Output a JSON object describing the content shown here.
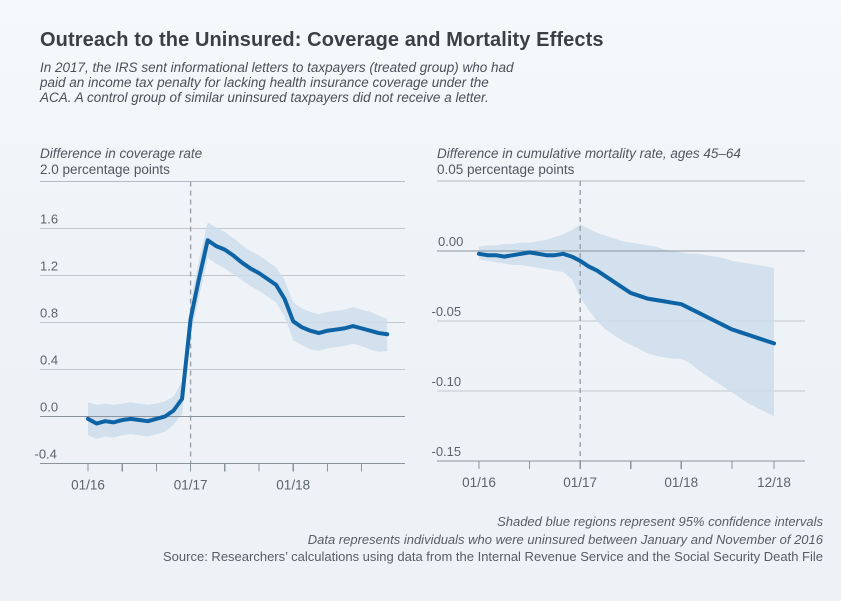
{
  "page": {
    "title": "Outreach to the Uninsured: Coverage and Mortality Effects",
    "subtitle_lines": [
      "In 2017, the IRS sent informational letters to taxpayers (treated group) who had",
      "paid an income tax penalty for lacking health insurance coverage under the",
      "ACA. A control group of similar uninsured taxpayers did not receive a letter."
    ],
    "footer": {
      "note1": "Shaded blue regions represent 95% confidence intervals",
      "note2": "Data represents individuals who were uninsured between January and November of 2016",
      "source": "Source: Researchers’ calculations using data from the Internal Revenue Service and the Social Security Death File"
    }
  },
  "colors": {
    "background": "#eff3f7",
    "line_blue": "#0e63a5",
    "band_blue": "#cdddeb",
    "grid_gray": "#c2c8ce",
    "dark_gray": "#8b939b",
    "dashed_gray": "#9aa1a9",
    "title_text": "#3a4046",
    "body_text": "#4a5158"
  },
  "chart_data": [
    {
      "type": "line",
      "title": "Difference in coverage rate",
      "units_label": "2.0 percentage points",
      "ylabel": "percentage points",
      "ylim": [
        -0.4,
        2.0
      ],
      "grid": true,
      "event_line_month": "01/17",
      "x": [
        "01/16",
        "02/16",
        "03/16",
        "04/16",
        "05/16",
        "06/16",
        "07/16",
        "08/16",
        "09/16",
        "10/16",
        "11/16",
        "12/16",
        "01/17",
        "02/17",
        "03/17",
        "04/17",
        "05/17",
        "06/17",
        "07/17",
        "08/17",
        "09/17",
        "10/17",
        "11/17",
        "12/17",
        "01/18",
        "02/18",
        "03/18",
        "04/18",
        "05/18",
        "06/18",
        "07/18",
        "08/18",
        "09/18",
        "10/18",
        "11/18",
        "12/18"
      ],
      "series": [
        {
          "name": "treated-minus-control coverage difference",
          "values": [
            -0.02,
            -0.06,
            -0.04,
            -0.05,
            -0.03,
            -0.02,
            -0.03,
            -0.04,
            -0.02,
            0.0,
            0.05,
            0.15,
            0.83,
            1.18,
            1.5,
            1.45,
            1.42,
            1.37,
            1.31,
            1.26,
            1.22,
            1.17,
            1.12,
            1.0,
            0.81,
            0.76,
            0.73,
            0.71,
            0.73,
            0.74,
            0.75,
            0.77,
            0.75,
            0.73,
            0.71,
            0.7
          ]
        },
        {
          "name": "95% CI upper",
          "values": [
            0.12,
            0.1,
            0.11,
            0.1,
            0.11,
            0.12,
            0.11,
            0.1,
            0.11,
            0.13,
            0.17,
            0.3,
            0.97,
            1.34,
            1.65,
            1.61,
            1.57,
            1.52,
            1.46,
            1.41,
            1.37,
            1.32,
            1.27,
            1.16,
            0.97,
            0.92,
            0.89,
            0.87,
            0.89,
            0.9,
            0.91,
            0.93,
            0.91,
            0.89,
            0.86,
            0.83
          ]
        },
        {
          "name": "95% CI lower",
          "values": [
            -0.16,
            -0.19,
            -0.17,
            -0.18,
            -0.16,
            -0.15,
            -0.16,
            -0.17,
            -0.15,
            -0.13,
            -0.07,
            0.02,
            0.68,
            1.02,
            1.35,
            1.3,
            1.26,
            1.21,
            1.16,
            1.11,
            1.07,
            1.02,
            0.97,
            0.85,
            0.65,
            0.61,
            0.57,
            0.56,
            0.58,
            0.59,
            0.6,
            0.62,
            0.6,
            0.57,
            0.55,
            0.56
          ]
        }
      ],
      "yticks": [
        {
          "v": 1.6,
          "t": "1.6",
          "k": "grid"
        },
        {
          "v": 1.2,
          "t": "1.2",
          "k": "grid"
        },
        {
          "v": 0.8,
          "t": "0.8",
          "k": "grid"
        },
        {
          "v": 0.4,
          "t": "0.4",
          "k": "grid"
        },
        {
          "v": 0.0,
          "t": "0.0",
          "k": "zero"
        },
        {
          "v": -0.4,
          "t": "-0.4",
          "k": "axis"
        }
      ],
      "xtick_idx": [
        0,
        4,
        8,
        12,
        16,
        20,
        24,
        28,
        32
      ],
      "xlabel_idx": [
        0,
        12,
        24
      ]
    },
    {
      "type": "line",
      "title": "Difference in cumulative mortality rate, ages 45–64",
      "units_label": "0.05 percentage points",
      "ylabel": "percentage points",
      "ylim": [
        -0.15,
        0.05
      ],
      "grid": true,
      "event_line_month": "01/17",
      "x": [
        "01/16",
        "02/16",
        "03/16",
        "04/16",
        "05/16",
        "06/16",
        "07/16",
        "08/16",
        "09/16",
        "10/16",
        "11/16",
        "12/16",
        "01/17",
        "02/17",
        "03/17",
        "04/17",
        "05/17",
        "06/17",
        "07/17",
        "08/17",
        "09/17",
        "10/17",
        "11/17",
        "12/17",
        "01/18",
        "02/18",
        "03/18",
        "04/18",
        "05/18",
        "06/18",
        "07/18",
        "08/18",
        "09/18",
        "10/18",
        "11/18",
        "12/18"
      ],
      "series": [
        {
          "name": "treated-minus-control cumulative mortality difference",
          "values": [
            -0.002,
            -0.003,
            -0.003,
            -0.004,
            -0.003,
            -0.002,
            -0.001,
            -0.002,
            -0.003,
            -0.003,
            -0.002,
            -0.004,
            -0.007,
            -0.011,
            -0.014,
            -0.018,
            -0.022,
            -0.026,
            -0.03,
            -0.032,
            -0.034,
            -0.035,
            -0.036,
            -0.037,
            -0.038,
            -0.041,
            -0.044,
            -0.047,
            -0.05,
            -0.053,
            -0.056,
            -0.058,
            -0.06,
            -0.062,
            -0.064,
            -0.066
          ]
        },
        {
          "name": "95% CI upper",
          "values": [
            0.003,
            0.004,
            0.004,
            0.005,
            0.005,
            0.006,
            0.006,
            0.007,
            0.008,
            0.01,
            0.012,
            0.015,
            0.019,
            0.016,
            0.013,
            0.011,
            0.009,
            0.007,
            0.006,
            0.005,
            0.004,
            0.003,
            0.001,
            0.0,
            -0.001,
            -0.002,
            -0.002,
            -0.003,
            -0.004,
            -0.005,
            -0.007,
            -0.008,
            -0.009,
            -0.01,
            -0.011,
            -0.012
          ]
        },
        {
          "name": "95% CI lower",
          "values": [
            -0.006,
            -0.007,
            -0.008,
            -0.009,
            -0.01,
            -0.01,
            -0.011,
            -0.012,
            -0.013,
            -0.014,
            -0.015,
            -0.02,
            -0.033,
            -0.042,
            -0.05,
            -0.056,
            -0.06,
            -0.064,
            -0.067,
            -0.07,
            -0.073,
            -0.075,
            -0.076,
            -0.077,
            -0.077,
            -0.08,
            -0.085,
            -0.089,
            -0.093,
            -0.097,
            -0.101,
            -0.105,
            -0.109,
            -0.112,
            -0.115,
            -0.118
          ]
        }
      ],
      "yticks": [
        {
          "v": 0.0,
          "t": "0.00",
          "k": "zero"
        },
        {
          "v": -0.05,
          "t": "-0.05",
          "k": "grid"
        },
        {
          "v": -0.1,
          "t": "-0.10",
          "k": "grid"
        },
        {
          "v": -0.15,
          "t": "-0.15",
          "k": "axis"
        }
      ],
      "xtick_idx": [
        0,
        6,
        12,
        18,
        24,
        30,
        35
      ],
      "xlabel_idx": [
        0,
        12,
        24,
        35
      ]
    }
  ]
}
